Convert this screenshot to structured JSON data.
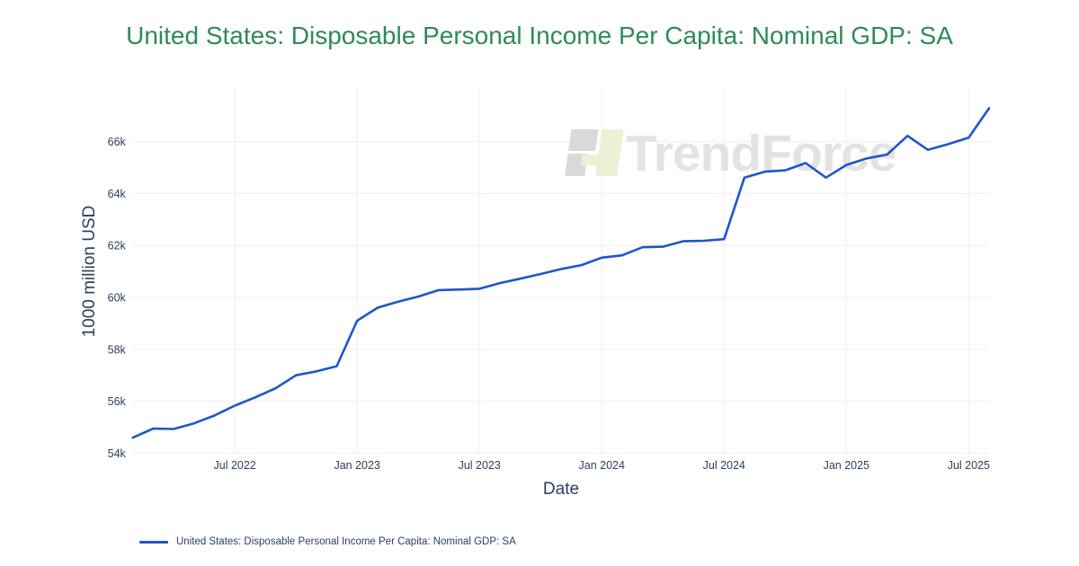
{
  "figure": {
    "title": "United States: Disposable Personal Income Per Capita: Nominal GDP: SA",
    "title_color": "#2e8b57",
    "watermark": {
      "text": "TrendForce"
    },
    "legend": [
      {
        "label": "United States: Disposable Personal Income Per Capita: Nominal GDP: SA",
        "color": "#1e56cb"
      }
    ]
  },
  "chart_data": {
    "type": "line",
    "title": "United States: Disposable Personal Income Per Capita: Nominal GDP: SA",
    "xlabel": "Date",
    "ylabel": "1000 million USD",
    "grid": true,
    "legend_position": "bottom-left",
    "line_color": "#1e56cb",
    "grid_color": "#efefef",
    "axis_text_color": "#2a3f5f",
    "x": [
      "2022-02",
      "2022-03",
      "2022-04",
      "2022-05",
      "2022-06",
      "2022-07",
      "2022-08",
      "2022-09",
      "2022-10",
      "2022-11",
      "2022-12",
      "2023-01",
      "2023-02",
      "2023-03",
      "2023-04",
      "2023-05",
      "2023-06",
      "2023-07",
      "2023-08",
      "2023-09",
      "2023-10",
      "2023-11",
      "2023-12",
      "2024-01",
      "2024-02",
      "2024-03",
      "2024-04",
      "2024-05",
      "2024-06",
      "2024-07",
      "2024-08",
      "2024-09",
      "2024-10",
      "2024-11",
      "2024-12",
      "2025-01",
      "2025-02",
      "2025-03",
      "2025-04",
      "2025-05",
      "2025-06",
      "2025-07",
      "2025-08"
    ],
    "series": [
      {
        "name": "United States: Disposable Personal Income Per Capita: Nominal GDP: SA",
        "color": "#1e56cb",
        "values": [
          54.6,
          54.95,
          54.93,
          55.15,
          55.45,
          55.83,
          56.15,
          56.5,
          57.0,
          57.15,
          57.35,
          59.1,
          59.6,
          59.83,
          60.03,
          60.28,
          60.3,
          60.33,
          60.55,
          60.72,
          60.9,
          61.09,
          61.24,
          61.53,
          61.62,
          61.93,
          61.95,
          62.16,
          62.18,
          62.24,
          64.61,
          64.84,
          64.89,
          65.17,
          64.61,
          65.1,
          65.35,
          65.5,
          66.22,
          65.68,
          65.9,
          66.15,
          67.28
        ]
      }
    ],
    "x_ticks": [
      {
        "index": 5,
        "label": "Jul 2022"
      },
      {
        "index": 11,
        "label": "Jan 2023"
      },
      {
        "index": 17,
        "label": "Jul 2023"
      },
      {
        "index": 23,
        "label": "Jan 2024"
      },
      {
        "index": 29,
        "label": "Jul 2024"
      },
      {
        "index": 35,
        "label": "Jan 2025"
      },
      {
        "index": 41,
        "label": "Jul 2025"
      }
    ],
    "y_ticks": [
      {
        "value": 54,
        "label": "54k"
      },
      {
        "value": 56,
        "label": "56k"
      },
      {
        "value": 58,
        "label": "58k"
      },
      {
        "value": 60,
        "label": "60k"
      },
      {
        "value": 62,
        "label": "62k"
      },
      {
        "value": 64,
        "label": "64k"
      },
      {
        "value": 66,
        "label": "66k"
      }
    ],
    "y_range": [
      53.98,
      68.06
    ],
    "ylim": [
      53.98,
      68.06
    ]
  }
}
